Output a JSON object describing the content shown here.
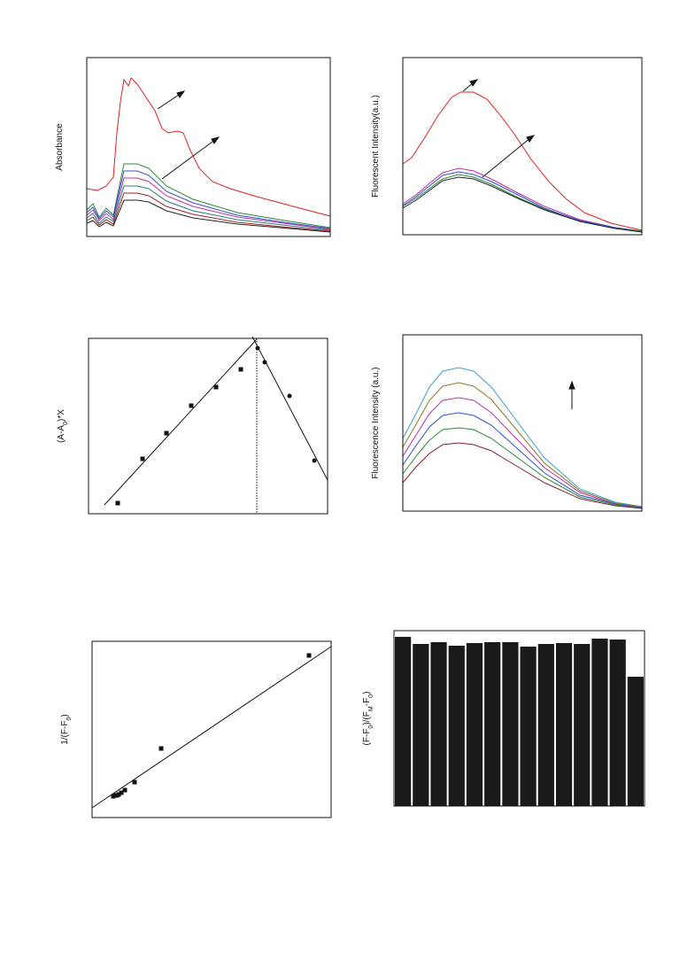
{
  "chart_data": [
    {
      "type": "line",
      "y_label": [
        "Absorbance"
      ],
      "xlim": [
        0,
        275
      ],
      "ylim": [
        0,
        202
      ],
      "series": [
        {
          "color": "#e02020",
          "x": [
            0,
            12,
            22,
            30,
            34,
            38,
            42,
            47,
            50,
            57,
            67,
            77,
            85,
            92,
            102,
            109,
            117,
            127,
            142,
            162,
            192,
            222,
            252,
            275
          ],
          "values": [
            54,
            52,
            57,
            67,
            117,
            152,
            177,
            170,
            179,
            172,
            157,
            142,
            122,
            117,
            119,
            117,
            97,
            77,
            62,
            54,
            45,
            37,
            29,
            23
          ]
        },
        {
          "color": "#2a8a3a",
          "x": [
            0,
            7,
            14,
            22,
            30,
            42,
            57,
            70,
            90,
            120,
            170,
            230,
            275
          ],
          "values": [
            30,
            37,
            22,
            32,
            24,
            82,
            82,
            77,
            57,
            42,
            27,
            17,
            10
          ]
        },
        {
          "color": "#3050d0",
          "x": [
            0,
            7,
            14,
            22,
            30,
            42,
            57,
            70,
            90,
            120,
            170,
            230,
            275
          ],
          "values": [
            27,
            33,
            20,
            29,
            22,
            74,
            74,
            69,
            51,
            38,
            24,
            15,
            9
          ]
        },
        {
          "color": "#c030a0",
          "x": [
            0,
            7,
            14,
            22,
            30,
            42,
            57,
            70,
            90,
            120,
            170,
            230,
            275
          ],
          "values": [
            24,
            30,
            18,
            26,
            19,
            66,
            66,
            62,
            46,
            34,
            22,
            14,
            8
          ]
        },
        {
          "color": "#208080",
          "x": [
            0,
            7,
            14,
            22,
            30,
            42,
            57,
            70,
            90,
            120,
            170,
            230,
            275
          ],
          "values": [
            21,
            26,
            15,
            22,
            17,
            57,
            57,
            54,
            40,
            29,
            19,
            12,
            7
          ]
        },
        {
          "color": "#a02020",
          "x": [
            0,
            7,
            14,
            22,
            30,
            42,
            57,
            70,
            90,
            120,
            170,
            230,
            275
          ],
          "values": [
            18,
            22,
            13,
            19,
            14,
            49,
            49,
            46,
            34,
            25,
            16,
            10,
            6
          ]
        },
        {
          "color": "#222222",
          "x": [
            0,
            7,
            14,
            22,
            30,
            42,
            57,
            70,
            90,
            120,
            170,
            230,
            275
          ],
          "values": [
            15,
            18,
            11,
            16,
            12,
            41,
            41,
            39,
            29,
            21,
            14,
            9,
            5
          ]
        }
      ]
    },
    {
      "type": "line",
      "y_label": [
        "Fluorescent Intensity(a.u.)"
      ],
      "xlim": [
        0,
        270
      ],
      "ylim": [
        0,
        200
      ],
      "series": [
        {
          "color": "#e02020",
          "x": [
            0,
            10,
            25,
            40,
            55,
            65,
            80,
            95,
            110,
            125,
            145,
            165,
            185,
            205,
            235,
            270
          ],
          "values": [
            80,
            87,
            110,
            135,
            155,
            161,
            161,
            153,
            135,
            115,
            85,
            60,
            40,
            25,
            13,
            5
          ]
        },
        {
          "color": "#c030a0",
          "x": [
            0,
            15,
            30,
            45,
            63,
            80,
            100,
            130,
            160,
            200,
            240,
            270
          ],
          "values": [
            35,
            45,
            58,
            70,
            75,
            72,
            63,
            47,
            32,
            17,
            8,
            4
          ]
        },
        {
          "color": "#3050d0",
          "x": [
            0,
            15,
            30,
            45,
            63,
            80,
            100,
            130,
            160,
            200,
            240,
            270
          ],
          "values": [
            33,
            43,
            55,
            67,
            71,
            68,
            60,
            45,
            30,
            16,
            8,
            4
          ]
        },
        {
          "color": "#2a8a3a",
          "x": [
            0,
            15,
            30,
            45,
            63,
            80,
            100,
            130,
            160,
            200,
            240,
            270
          ],
          "values": [
            32,
            41,
            52,
            63,
            68,
            65,
            57,
            42,
            29,
            15,
            7,
            4
          ]
        },
        {
          "color": "#222222",
          "x": [
            0,
            15,
            30,
            45,
            63,
            80,
            100,
            130,
            160,
            200,
            240,
            270
          ],
          "values": [
            30,
            39,
            50,
            61,
            65,
            63,
            55,
            41,
            28,
            15,
            7,
            3
          ]
        }
      ]
    },
    {
      "type": "scatter",
      "y_label": [
        "(A-A",
        "0",
        ")*X"
      ],
      "xlim": [
        0,
        270
      ],
      "ylim": [
        0,
        198
      ],
      "series": [
        {
          "marker": "square",
          "x": [
            33,
            61,
            88,
            116,
            144,
            172
          ],
          "values": [
            12,
            62,
            91,
            122,
            143,
            163
          ]
        },
        {
          "marker": "circle",
          "x": [
            191,
            199,
            227,
            255
          ],
          "values": [
            187,
            171,
            133,
            60
          ]
        }
      ],
      "lines": [
        {
          "x": [
            18,
            190
          ],
          "values": [
            10,
            197
          ]
        },
        {
          "x": [
            185,
            270
          ],
          "values": [
            200,
            38
          ]
        }
      ],
      "vline": 190
    },
    {
      "type": "line",
      "y_label": [
        "Fluorescence Intensity (a.u.)"
      ],
      "xlim": [
        0,
        270
      ],
      "ylim": [
        0,
        199
      ],
      "series": [
        {
          "color": "#3aa0d0",
          "x": [
            0,
            15,
            30,
            45,
            63,
            80,
            100,
            130,
            160,
            200,
            240,
            270
          ],
          "values": [
            82,
            110,
            140,
            158,
            162,
            158,
            140,
            100,
            60,
            25,
            10,
            5
          ]
        },
        {
          "color": "#8a7a20",
          "x": [
            0,
            15,
            30,
            45,
            63,
            80,
            100,
            130,
            160,
            200,
            240,
            270
          ],
          "values": [
            72,
            98,
            125,
            141,
            145,
            141,
            126,
            90,
            54,
            23,
            9,
            5
          ]
        },
        {
          "color": "#c030a0",
          "x": [
            0,
            15,
            30,
            45,
            63,
            80,
            100,
            130,
            160,
            200,
            240,
            270
          ],
          "values": [
            62,
            86,
            110,
            125,
            128,
            125,
            111,
            80,
            49,
            21,
            8,
            4
          ]
        },
        {
          "color": "#3050d0",
          "x": [
            0,
            15,
            30,
            45,
            63,
            80,
            100,
            130,
            160,
            200,
            240,
            270
          ],
          "values": [
            52,
            74,
            95,
            108,
            111,
            108,
            97,
            70,
            43,
            18,
            8,
            4
          ]
        },
        {
          "color": "#2a8a3a",
          "x": [
            0,
            15,
            30,
            45,
            63,
            80,
            100,
            130,
            160,
            200,
            240,
            270
          ],
          "values": [
            42,
            62,
            80,
            92,
            94,
            92,
            82,
            60,
            38,
            16,
            7,
            3
          ]
        },
        {
          "color": "#802030",
          "x": [
            0,
            15,
            30,
            45,
            63,
            80,
            100,
            130,
            160,
            200,
            240,
            270
          ],
          "values": [
            32,
            50,
            65,
            75,
            77,
            75,
            68,
            50,
            32,
            14,
            6,
            3
          ]
        }
      ]
    },
    {
      "type": "scatter",
      "y_label": [
        "1/(F-F",
        "0",
        ")"
      ],
      "xlim": [
        0,
        270
      ],
      "ylim": [
        0,
        199
      ],
      "series": [
        {
          "marker": "square",
          "x": [
            24,
            26,
            28,
            30,
            33,
            37,
            48,
            78,
            245
          ],
          "values": [
            24,
            25,
            25,
            26,
            28,
            31,
            40,
            78,
            183
          ]
        }
      ],
      "lines": [
        {
          "x": [
            0,
            270
          ],
          "values": [
            11,
            193
          ]
        }
      ]
    },
    {
      "type": "bar",
      "y_label": [
        "(F-F",
        "0",
        ")/(F",
        "M",
        "-F",
        "0",
        ")"
      ],
      "ylim": [
        0,
        198
      ],
      "color": "#1a1a1a",
      "categories": [
        null,
        null,
        null,
        null,
        null,
        null,
        null,
        null,
        null,
        null,
        null,
        null,
        null,
        null
      ],
      "values": [
        191,
        183,
        185,
        181,
        184,
        185,
        185,
        180,
        183,
        184,
        183,
        189,
        188,
        146
      ]
    }
  ]
}
